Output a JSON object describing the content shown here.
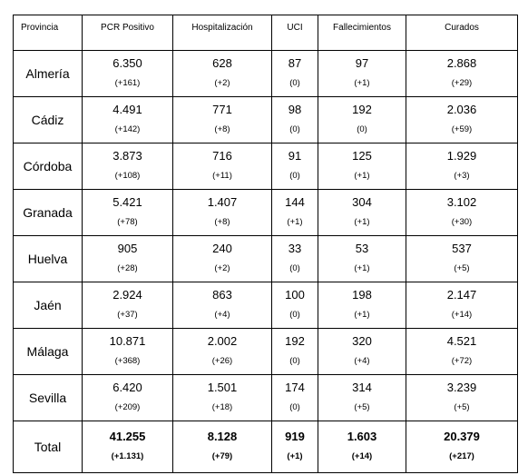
{
  "headers": [
    "Provincia",
    "PCR Positivo",
    "Hospitalización",
    "UCI",
    "Fallecimientos",
    "Curados"
  ],
  "rows": [
    {
      "province": "Almería",
      "pcr": "6.350",
      "pcr_delta": "(+161)",
      "hosp": "628",
      "hosp_delta": "(+2)",
      "uci": "87",
      "uci_delta": "(0)",
      "fall": "97",
      "fall_delta": "(+1)",
      "cur": "2.868",
      "cur_delta": "(+29)"
    },
    {
      "province": "Cádiz",
      "pcr": "4.491",
      "pcr_delta": "(+142)",
      "hosp": "771",
      "hosp_delta": "(+8)",
      "uci": "98",
      "uci_delta": "(0)",
      "fall": "192",
      "fall_delta": "(0)",
      "cur": "2.036",
      "cur_delta": "(+59)"
    },
    {
      "province": "Córdoba",
      "pcr": "3.873",
      "pcr_delta": "(+108)",
      "hosp": "716",
      "hosp_delta": "(+11)",
      "uci": "91",
      "uci_delta": "(0)",
      "fall": "125",
      "fall_delta": "(+1)",
      "cur": "1.929",
      "cur_delta": "(+3)"
    },
    {
      "province": "Granada",
      "pcr": "5.421",
      "pcr_delta": "(+78)",
      "hosp": "1.407",
      "hosp_delta": "(+8)",
      "uci": "144",
      "uci_delta": "(+1)",
      "fall": "304",
      "fall_delta": "(+1)",
      "cur": "3.102",
      "cur_delta": "(+30)"
    },
    {
      "province": "Huelva",
      "pcr": "905",
      "pcr_delta": "(+28)",
      "hosp": "240",
      "hosp_delta": "(+2)",
      "uci": "33",
      "uci_delta": "(0)",
      "fall": "53",
      "fall_delta": "(+1)",
      "cur": "537",
      "cur_delta": "(+5)"
    },
    {
      "province": "Jaén",
      "pcr": "2.924",
      "pcr_delta": "(+37)",
      "hosp": "863",
      "hosp_delta": "(+4)",
      "uci": "100",
      "uci_delta": "(0)",
      "fall": "198",
      "fall_delta": "(+1)",
      "cur": "2.147",
      "cur_delta": "(+14)"
    },
    {
      "province": "Málaga",
      "pcr": "10.871",
      "pcr_delta": "(+368)",
      "hosp": "2.002",
      "hosp_delta": "(+26)",
      "uci": "192",
      "uci_delta": "(0)",
      "fall": "320",
      "fall_delta": "(+4)",
      "cur": "4.521",
      "cur_delta": "(+72)"
    },
    {
      "province": "Sevilla",
      "pcr": "6.420",
      "pcr_delta": "(+209)",
      "hosp": "1.501",
      "hosp_delta": "(+18)",
      "uci": "174",
      "uci_delta": "(0)",
      "fall": "314",
      "fall_delta": "(+5)",
      "cur": "3.239",
      "cur_delta": "(+5)"
    }
  ],
  "total": {
    "province": "Total",
    "pcr": "41.255",
    "pcr_delta": "(+1.131)",
    "hosp": "8.128",
    "hosp_delta": "(+79)",
    "uci": "919",
    "uci_delta": "(+1)",
    "fall": "1.603",
    "fall_delta": "(+14)",
    "cur": "20.379",
    "cur_delta": "(+217)"
  }
}
